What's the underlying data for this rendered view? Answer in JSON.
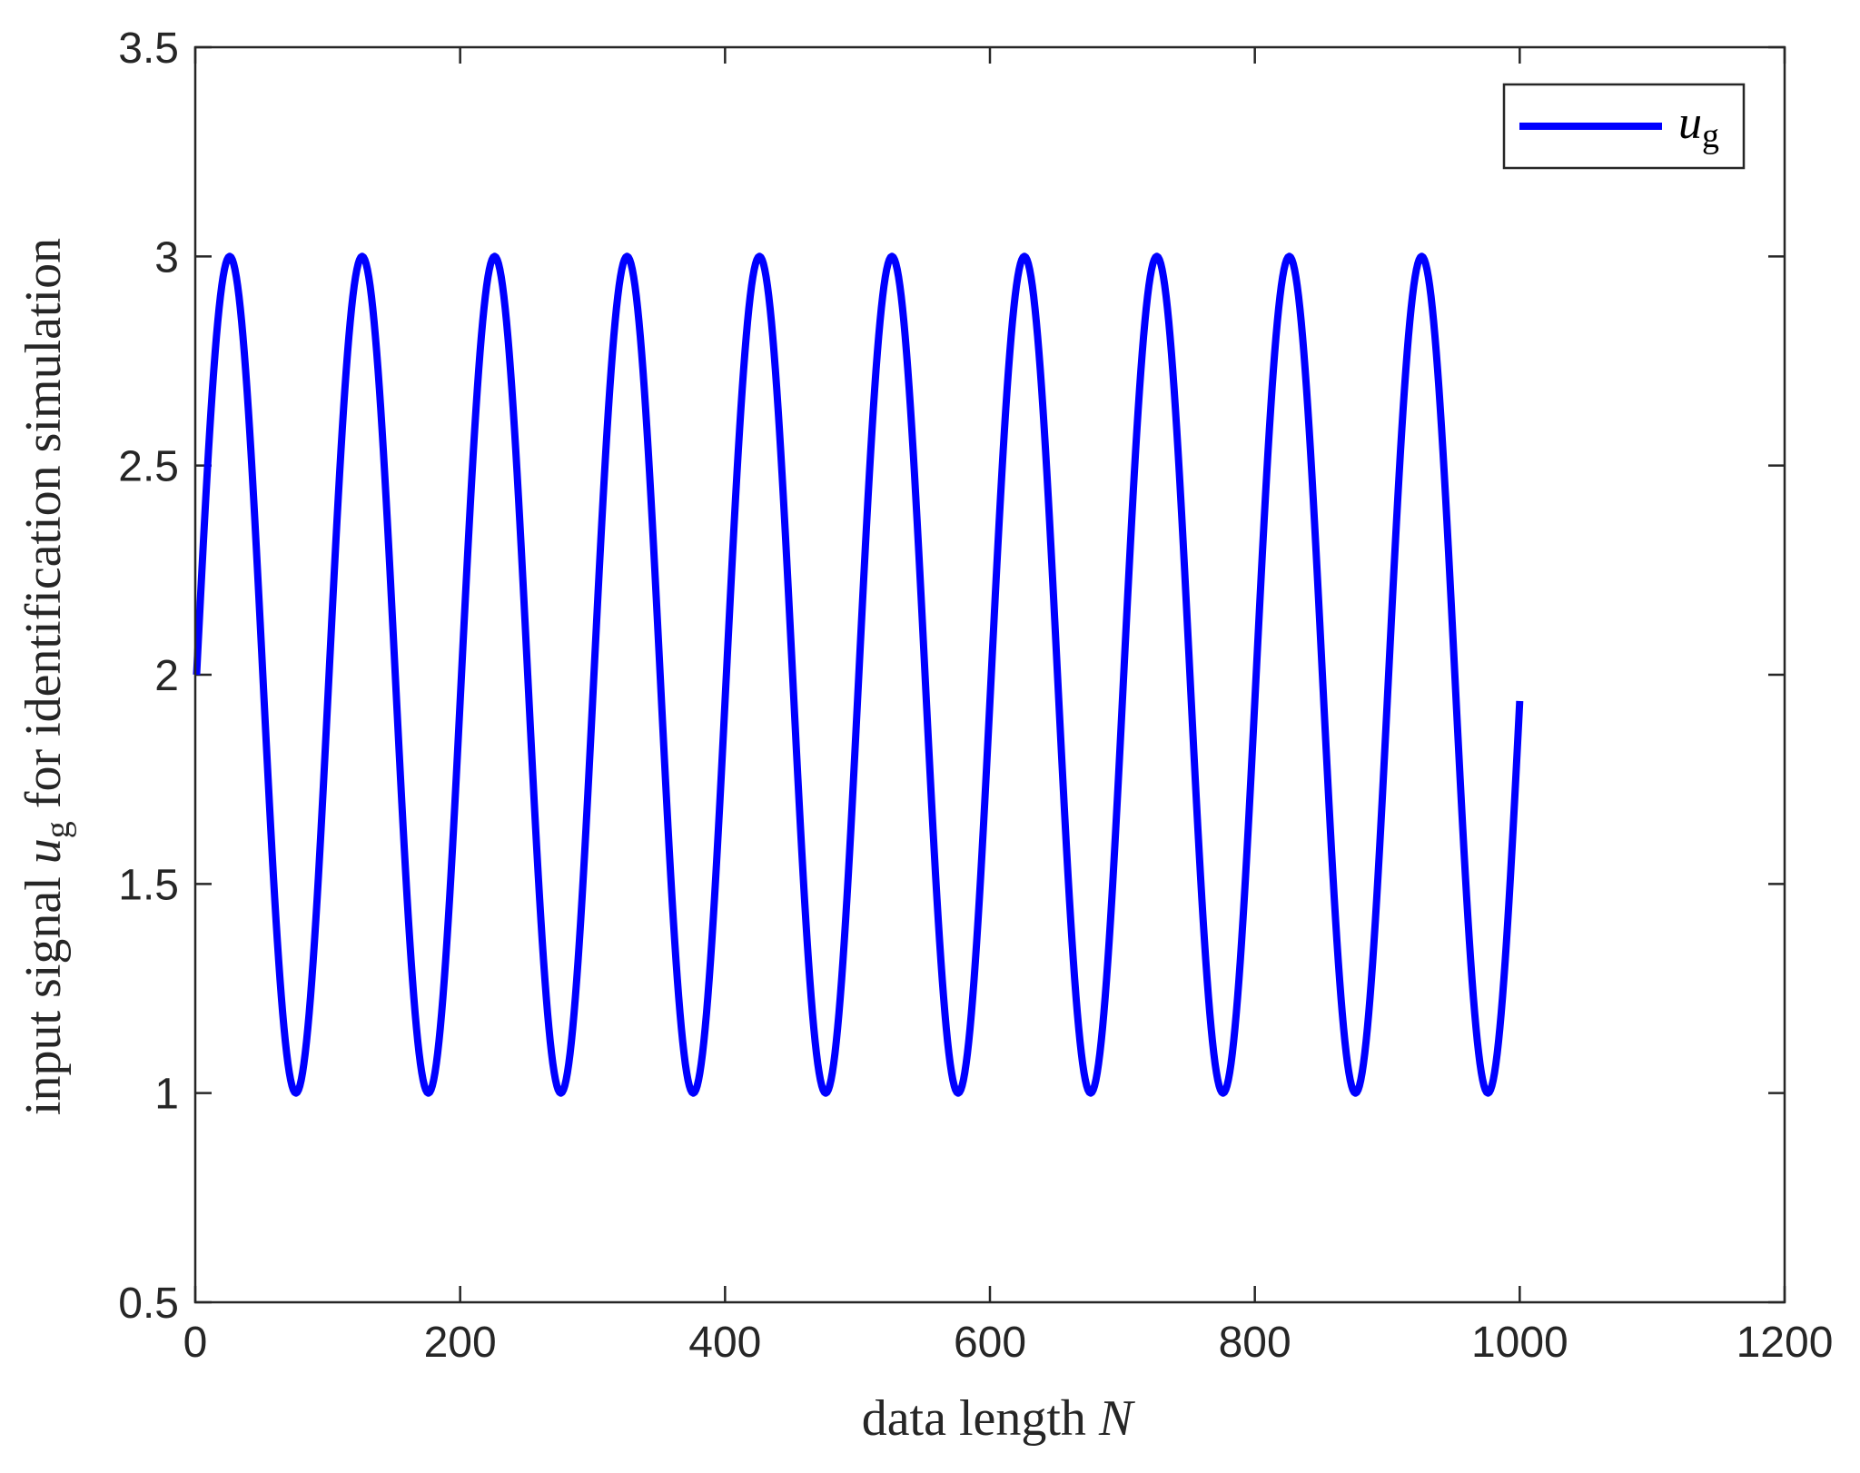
{
  "chart_data": {
    "type": "line",
    "title": "",
    "xlabel": {
      "text": "data length ",
      "symbol": "N"
    },
    "ylabel": {
      "text": "input signal ",
      "symbol": "u",
      "subscript": "g",
      "suffix": " for identification simulation"
    },
    "xlim": [
      0,
      1200
    ],
    "ylim": [
      0.5,
      3.5
    ],
    "x_ticks": [
      "0",
      "200",
      "400",
      "600",
      "800",
      "1000",
      "1200"
    ],
    "y_ticks": [
      "0.5",
      "1",
      "1.5",
      "2",
      "2.5",
      "3",
      "3.5"
    ],
    "grid": false,
    "legend_position": "top-right",
    "series": [
      {
        "name": "u",
        "name_subscript": "g",
        "color": "#0000ff",
        "function": "2 + sin(2*pi*x/100)",
        "x_range": [
          1,
          1000
        ],
        "period": 100,
        "mean": 2,
        "amplitude": 1,
        "peaks": [
          [
            26,
            3
          ],
          [
            126,
            3
          ],
          [
            226,
            3
          ],
          [
            326,
            3
          ],
          [
            426,
            3
          ],
          [
            526,
            3
          ],
          [
            626,
            3
          ],
          [
            726,
            3
          ],
          [
            826,
            3
          ],
          [
            926,
            3
          ]
        ],
        "troughs": [
          [
            76,
            1
          ],
          [
            176,
            1
          ],
          [
            276,
            1
          ],
          [
            376,
            1
          ],
          [
            476,
            1
          ],
          [
            576,
            1
          ],
          [
            676,
            1
          ],
          [
            776,
            1
          ],
          [
            876,
            1
          ],
          [
            976,
            1
          ]
        ]
      }
    ]
  }
}
